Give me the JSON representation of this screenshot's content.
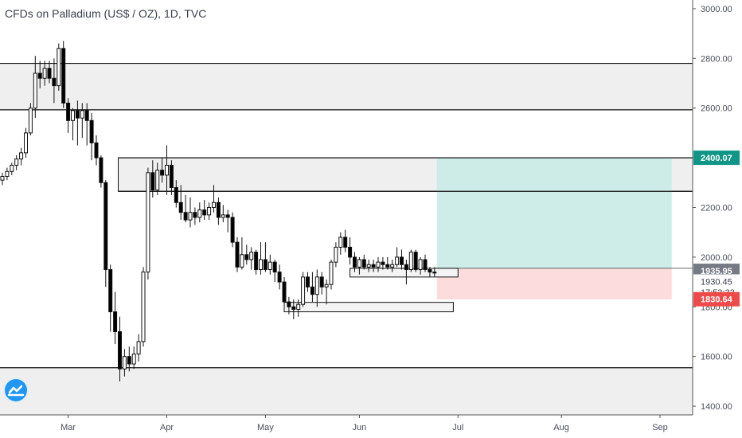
{
  "title": "CFDs on Palladium (US$ / OZ), 1D, TVC",
  "colors": {
    "up": "#ffffff",
    "down": "#000000",
    "zone_fill": "#efefef",
    "target_fill": "#c9ebe6",
    "stop_fill": "#fcd8d8",
    "badge_green": "#109686",
    "badge_red": "#ef4a4a",
    "badge_gray": "#767a85"
  },
  "logo_icon": "tradingview-logo-icon",
  "chart_data": {
    "type": "candlestick",
    "title": "CFDs on Palladium (US$ / OZ), 1D, TVC",
    "ylim": [
      1365,
      3035
    ],
    "y_ticks": [
      {
        "v": 3000,
        "label": "3000.00"
      },
      {
        "v": 2800,
        "label": "2800.00"
      },
      {
        "v": 2600,
        "label": "2600.00"
      },
      {
        "v": 2400,
        "label": "2400.00"
      },
      {
        "v": 2200,
        "label": "2200.00"
      },
      {
        "v": 2000,
        "label": "2000.00"
      },
      {
        "v": 1800,
        "label": "1800.00"
      },
      {
        "v": 1600,
        "label": "1600.00"
      },
      {
        "v": 1400,
        "label": "1400.00"
      }
    ],
    "x_ticks": [
      {
        "i": 14,
        "label": "Mar"
      },
      {
        "i": 35,
        "label": "Apr"
      },
      {
        "i": 56,
        "label": "May"
      },
      {
        "i": 76,
        "label": "Jun"
      },
      {
        "i": 97,
        "label": "Jul"
      },
      {
        "i": 119,
        "label": "Aug"
      },
      {
        "i": 140,
        "label": "Sep"
      }
    ],
    "candles": [
      [
        2310,
        2340,
        2290,
        2325
      ],
      [
        2325,
        2360,
        2310,
        2345
      ],
      [
        2345,
        2380,
        2330,
        2370
      ],
      [
        2370,
        2410,
        2350,
        2395
      ],
      [
        2395,
        2440,
        2370,
        2420
      ],
      [
        2420,
        2520,
        2400,
        2500
      ],
      [
        2500,
        2620,
        2490,
        2600
      ],
      [
        2600,
        2810,
        2560,
        2740
      ],
      [
        2740,
        2790,
        2680,
        2720
      ],
      [
        2720,
        2790,
        2690,
        2760
      ],
      [
        2760,
        2790,
        2700,
        2720
      ],
      [
        2720,
        2800,
        2620,
        2690
      ],
      [
        2690,
        2860,
        2670,
        2840
      ],
      [
        2840,
        2870,
        2600,
        2620
      ],
      [
        2620,
        2640,
        2500,
        2550
      ],
      [
        2550,
        2600,
        2470,
        2590
      ],
      [
        2590,
        2630,
        2450,
        2560
      ],
      [
        2560,
        2620,
        2480,
        2590
      ],
      [
        2590,
        2620,
        2450,
        2550
      ],
      [
        2550,
        2580,
        2390,
        2460
      ],
      [
        2460,
        2490,
        2370,
        2400
      ],
      [
        2400,
        2410,
        2280,
        2300
      ],
      [
        2300,
        2310,
        1880,
        1950
      ],
      [
        1950,
        1970,
        1700,
        1780
      ],
      [
        1780,
        1860,
        1650,
        1700
      ],
      [
        1700,
        1760,
        1500,
        1550
      ],
      [
        1550,
        1630,
        1520,
        1600
      ],
      [
        1600,
        1640,
        1540,
        1570
      ],
      [
        1570,
        1640,
        1550,
        1610
      ],
      [
        1610,
        1690,
        1580,
        1660
      ],
      [
        1660,
        1960,
        1640,
        1940
      ],
      [
        1940,
        2360,
        1910,
        2340
      ],
      [
        2340,
        2390,
        2240,
        2270
      ],
      [
        2270,
        2380,
        2250,
        2350
      ],
      [
        2350,
        2400,
        2300,
        2330
      ],
      [
        2330,
        2450,
        2250,
        2370
      ],
      [
        2370,
        2390,
        2250,
        2280
      ],
      [
        2280,
        2310,
        2200,
        2220
      ],
      [
        2220,
        2290,
        2150,
        2180
      ],
      [
        2180,
        2250,
        2140,
        2150
      ],
      [
        2150,
        2240,
        2120,
        2180
      ],
      [
        2180,
        2200,
        2130,
        2160
      ],
      [
        2160,
        2220,
        2140,
        2190
      ],
      [
        2190,
        2230,
        2150,
        2170
      ],
      [
        2170,
        2220,
        2150,
        2200
      ],
      [
        2200,
        2290,
        2180,
        2220
      ],
      [
        2220,
        2240,
        2130,
        2160
      ],
      [
        2160,
        2210,
        2140,
        2170
      ],
      [
        2170,
        2190,
        2100,
        2160
      ],
      [
        2160,
        2180,
        2040,
        2060
      ],
      [
        2060,
        2080,
        1940,
        1960
      ],
      [
        1960,
        2080,
        1950,
        2010
      ],
      [
        2010,
        2050,
        1970,
        1990
      ],
      [
        1990,
        2040,
        1950,
        2020
      ],
      [
        2020,
        2030,
        1930,
        1950
      ],
      [
        1950,
        2060,
        1930,
        1990
      ],
      [
        1990,
        2060,
        1940,
        1950
      ],
      [
        1950,
        2010,
        1930,
        1980
      ],
      [
        1980,
        1990,
        1900,
        1940
      ],
      [
        1940,
        1970,
        1870,
        1900
      ],
      [
        1900,
        1920,
        1790,
        1820
      ],
      [
        1820,
        1840,
        1770,
        1800
      ],
      [
        1800,
        1830,
        1750,
        1790
      ],
      [
        1790,
        1830,
        1760,
        1810
      ],
      [
        1810,
        1940,
        1800,
        1920
      ],
      [
        1920,
        1940,
        1860,
        1880
      ],
      [
        1880,
        1940,
        1820,
        1850
      ],
      [
        1850,
        1950,
        1800,
        1920
      ],
      [
        1920,
        1940,
        1850,
        1880
      ],
      [
        1880,
        1910,
        1810,
        1890
      ],
      [
        1890,
        1990,
        1870,
        1980
      ],
      [
        1980,
        2060,
        1960,
        2040
      ],
      [
        2040,
        2100,
        2010,
        2080
      ],
      [
        2080,
        2110,
        2020,
        2040
      ],
      [
        2040,
        2080,
        1970,
        2000
      ],
      [
        2000,
        2020,
        1940,
        1960
      ],
      [
        1960,
        2000,
        1930,
        1990
      ],
      [
        1990,
        2010,
        1950,
        1960
      ],
      [
        1960,
        1990,
        1940,
        1970
      ],
      [
        1970,
        1990,
        1940,
        1960
      ],
      [
        1960,
        2000,
        1940,
        1980
      ],
      [
        1980,
        2000,
        1950,
        1970
      ],
      [
        1970,
        2000,
        1950,
        1960
      ],
      [
        1960,
        1990,
        1940,
        1970
      ],
      [
        1970,
        2040,
        1960,
        2000
      ],
      [
        2000,
        2030,
        1950,
        1970
      ],
      [
        1970,
        1990,
        1890,
        1950
      ],
      [
        1950,
        2030,
        1940,
        2020
      ],
      [
        2020,
        2030,
        1940,
        1950
      ],
      [
        1950,
        2000,
        1930,
        1990
      ],
      [
        1990,
        2010,
        1940,
        1950
      ],
      [
        1950,
        1960,
        1920,
        1940
      ],
      [
        1940,
        1960,
        1920,
        1935.95
      ]
    ],
    "levels": [
      2780,
      2593,
      1555
    ],
    "zones": [
      {
        "x_from": 0,
        "y_top": 2780,
        "y_bottom": 2593
      },
      {
        "x_from": 0,
        "y_top": 1555,
        "y_bottom": 1365
      },
      {
        "x_from": 25,
        "y_top": 2400,
        "y_bottom": 2265
      }
    ],
    "demand_boxes": [
      {
        "i0": 74,
        "i1": 97,
        "top": 1955,
        "bottom": 1920
      },
      {
        "i0": 60,
        "i1": 96,
        "top": 1818,
        "bottom": 1780
      }
    ],
    "position": {
      "i0": 92.5,
      "i1": 142.5,
      "entry": 1955,
      "target": 2400,
      "stop": 1830
    },
    "price_labels": [
      {
        "v": 2400.07,
        "label": "2400.07",
        "style": "green"
      },
      {
        "v": 1945,
        "label": "1935.95",
        "style": "gray"
      },
      {
        "v": 1902,
        "label": "1930.45",
        "style": "plain"
      },
      {
        "v": 1858,
        "label": "17:53:33",
        "style": "plain"
      },
      {
        "v": 1830.64,
        "label": "1830.64",
        "style": "red"
      }
    ]
  }
}
